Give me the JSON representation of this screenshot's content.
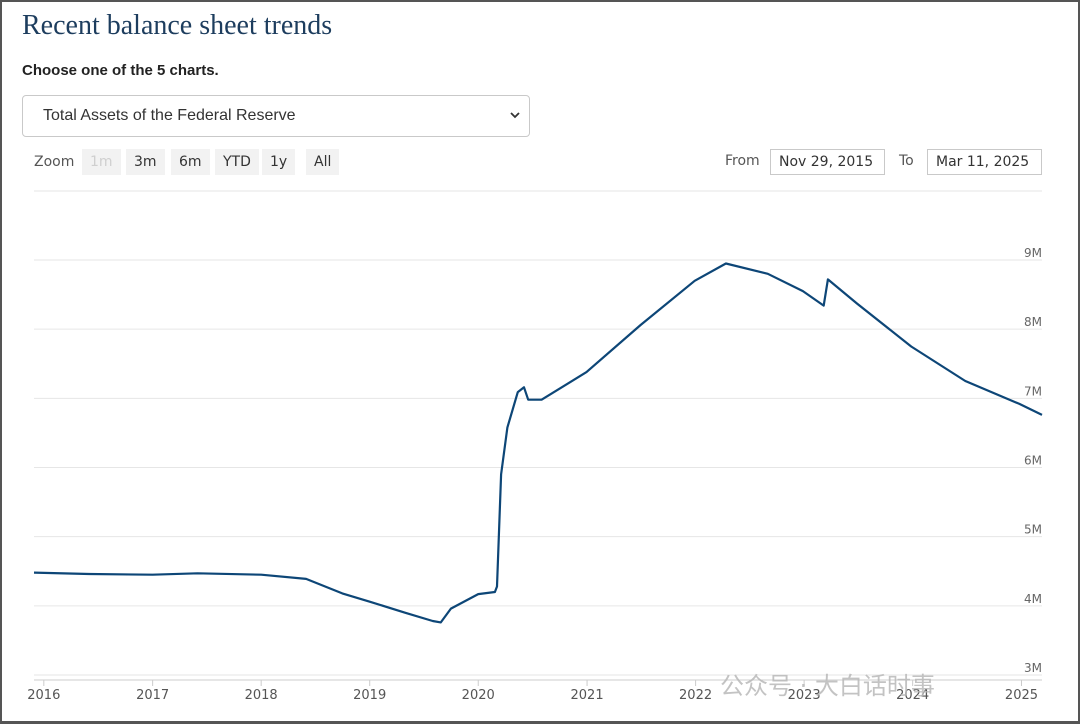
{
  "page": {
    "title": "Recent balance sheet trends",
    "subtitle": "Choose one of the 5 charts.",
    "select_value": "Total Assets of the Federal Reserve"
  },
  "zoom": {
    "label": "Zoom",
    "buttons": [
      "1m",
      "3m",
      "6m",
      "YTD",
      "1y",
      "All"
    ],
    "from_label": "From",
    "from_value": "Nov 29, 2015",
    "to_label": "To",
    "to_value": "Mar 11, 2025"
  },
  "watermark": "公众号 · 大白话时事",
  "colors": {
    "line": "#0d4677",
    "grid": "#e6e6e6",
    "title": "#1d3d5e"
  },
  "chart_data": {
    "type": "line",
    "title": "",
    "xlabel": "",
    "ylabel": "",
    "ylim": [
      3000000,
      9000000
    ],
    "y_ticks": [
      3000000,
      4000000,
      5000000,
      6000000,
      7000000,
      8000000,
      9000000
    ],
    "y_tick_labels": [
      "3M",
      "4M",
      "5M",
      "6M",
      "7M",
      "8M",
      "9M"
    ],
    "x_range": [
      "2015-11-29",
      "2025-03-11"
    ],
    "x_ticks": [
      "2016-01-01",
      "2017-01-01",
      "2018-01-01",
      "2019-01-01",
      "2020-01-01",
      "2021-01-01",
      "2022-01-01",
      "2023-01-01",
      "2024-01-01",
      "2025-01-01"
    ],
    "x_tick_labels": [
      "2016",
      "2017",
      "2018",
      "2019",
      "2020",
      "2021",
      "2022",
      "2023",
      "2024",
      "2025"
    ],
    "grid": true,
    "series": [
      {
        "name": "",
        "x": [
          "2015-11-29",
          "2016-06-01",
          "2017-01-01",
          "2017-06-01",
          "2018-01-01",
          "2018-06-01",
          "2018-10-01",
          "2019-01-01",
          "2019-05-01",
          "2019-08-01",
          "2019-08-28",
          "2019-10-01",
          "2020-01-01",
          "2020-02-26",
          "2020-03-04",
          "2020-03-18",
          "2020-04-08",
          "2020-05-13",
          "2020-06-03",
          "2020-06-17",
          "2020-08-01",
          "2020-12-30",
          "2021-06-30",
          "2021-12-29",
          "2022-04-13",
          "2022-09-01",
          "2022-12-28",
          "2023-03-08",
          "2023-03-22",
          "2023-06-28",
          "2023-12-27",
          "2024-06-26",
          "2024-12-25",
          "2025-03-11"
        ],
        "values": [
          4480000,
          4460000,
          4450000,
          4470000,
          4450000,
          4390000,
          4180000,
          4060000,
          3900000,
          3780000,
          3760000,
          3960000,
          4170000,
          4200000,
          4280000,
          5900000,
          6580000,
          7090000,
          7160000,
          6980000,
          6980000,
          7380000,
          8060000,
          8700000,
          8950000,
          8800000,
          8550000,
          8340000,
          8720000,
          8370000,
          7750000,
          7250000,
          6920000,
          6760000
        ]
      }
    ]
  }
}
